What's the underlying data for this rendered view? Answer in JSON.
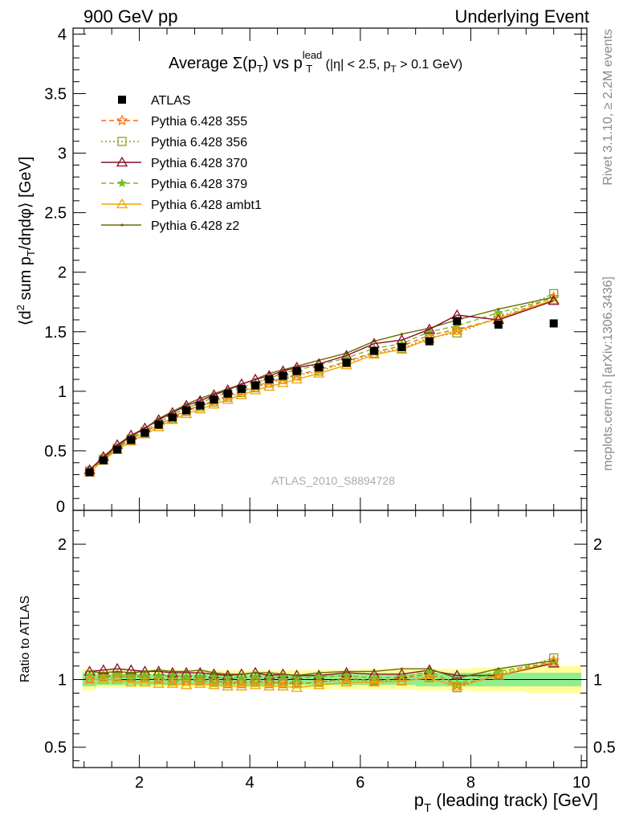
{
  "header": {
    "left": "900 GeV pp",
    "right": "Underlying Event"
  },
  "side_labels": {
    "rivet": "Rivet 3.1.10, ≥ 2.2M events",
    "mcplots": "mcplots.cern.ch [arXiv:1306.3436]"
  },
  "chart_data": [
    {
      "type": "scatter",
      "panel": "main",
      "title_parts": {
        "prefix": "Average Σ(p",
        "sub1": "T",
        "mid": ") vs p",
        "sup": "lead",
        "sub2": "T",
        "suffix": " (|η| < 2.5, p",
        "sub3": "T",
        "end": " > 0.1 GeV)"
      },
      "ylabel_parts": {
        "a": "⟨d",
        "sup": "2",
        "b": " sum p",
        "sub": "T",
        "c": "/dηdφ⟩ [GeV]"
      },
      "watermark": "ATLAS_2010_S8894728",
      "xlim": [
        0.8,
        10.1
      ],
      "ylim": [
        0,
        4.05
      ],
      "yticks": [
        "0.5",
        "1",
        "1.5",
        "2",
        "2.5",
        "3",
        "3.5",
        "4"
      ],
      "ytick_values": [
        0.5,
        1,
        1.5,
        2,
        2.5,
        3,
        3.5,
        4
      ],
      "y_zero_label": "0",
      "x": [
        1.1,
        1.35,
        1.6,
        1.85,
        2.1,
        2.35,
        2.6,
        2.85,
        3.1,
        3.35,
        3.6,
        3.85,
        4.1,
        4.35,
        4.6,
        4.85,
        5.25,
        5.75,
        6.25,
        6.75,
        7.25,
        7.75,
        8.5,
        9.5
      ],
      "series": [
        {
          "name": "ATLAS",
          "color": "#000000",
          "marker": "square-filled",
          "dash": "none",
          "values": [
            0.32,
            0.42,
            0.51,
            0.59,
            0.65,
            0.72,
            0.78,
            0.84,
            0.88,
            0.93,
            0.98,
            1.02,
            1.05,
            1.1,
            1.13,
            1.17,
            1.2,
            1.24,
            1.34,
            1.37,
            1.42,
            1.59,
            1.56,
            1.57
          ]
        },
        {
          "name": "Pythia 6.428 355",
          "color": "#ff6600",
          "marker": "star-open",
          "dash": "6,4",
          "values": [
            0.32,
            0.43,
            0.52,
            0.6,
            0.66,
            0.72,
            0.78,
            0.84,
            0.88,
            0.92,
            0.96,
            1.0,
            1.04,
            1.08,
            1.11,
            1.14,
            1.18,
            1.25,
            1.33,
            1.38,
            1.47,
            1.52,
            1.61,
            1.79
          ]
        },
        {
          "name": "Pythia 6.428 356",
          "color": "#8aa01e",
          "marker": "square-open",
          "dash": "2,3",
          "values": [
            0.33,
            0.43,
            0.52,
            0.6,
            0.66,
            0.72,
            0.77,
            0.83,
            0.87,
            0.91,
            0.95,
            0.99,
            1.03,
            1.07,
            1.1,
            1.13,
            1.17,
            1.24,
            1.32,
            1.36,
            1.45,
            1.49,
            1.62,
            1.82
          ]
        },
        {
          "name": "Pythia 6.428 370",
          "color": "#8b0d2a",
          "marker": "triangle-open",
          "dash": "none",
          "values": [
            0.34,
            0.45,
            0.55,
            0.63,
            0.69,
            0.76,
            0.82,
            0.88,
            0.92,
            0.97,
            1.01,
            1.06,
            1.1,
            1.13,
            1.17,
            1.2,
            1.23,
            1.3,
            1.4,
            1.43,
            1.52,
            1.64,
            1.6,
            1.76
          ]
        },
        {
          "name": "Pythia 6.428 379",
          "color": "#77bb22",
          "marker": "star-small",
          "dash": "6,4",
          "values": [
            0.33,
            0.43,
            0.53,
            0.61,
            0.67,
            0.74,
            0.8,
            0.86,
            0.9,
            0.95,
            0.99,
            1.03,
            1.07,
            1.11,
            1.15,
            1.18,
            1.22,
            1.28,
            1.36,
            1.4,
            1.5,
            1.55,
            1.66,
            1.78
          ]
        },
        {
          "name": "Pythia 6.428 ambt1",
          "color": "#f4a000",
          "marker": "triangle-open",
          "dash": "none",
          "values": [
            0.32,
            0.42,
            0.51,
            0.58,
            0.64,
            0.7,
            0.76,
            0.81,
            0.85,
            0.89,
            0.93,
            0.97,
            1.01,
            1.04,
            1.07,
            1.1,
            1.15,
            1.22,
            1.31,
            1.35,
            1.44,
            1.51,
            1.61,
            1.77
          ]
        },
        {
          "name": "Pythia 6.428 z2",
          "color": "#6b6b00",
          "marker": "dot",
          "dash": "none",
          "values": [
            0.34,
            0.44,
            0.54,
            0.62,
            0.69,
            0.77,
            0.83,
            0.89,
            0.94,
            0.98,
            1.02,
            1.06,
            1.1,
            1.15,
            1.18,
            1.21,
            1.26,
            1.32,
            1.42,
            1.48,
            1.53,
            1.6,
            1.69,
            1.79
          ]
        }
      ]
    },
    {
      "type": "scatter",
      "panel": "ratio",
      "ylabel": "Ratio to ATLAS",
      "xlabel_parts": {
        "a": "p",
        "sub": "T",
        "b": " (leading track) [GeV]"
      },
      "xlim": [
        0.8,
        10.1
      ],
      "ylim": [
        0.35,
        2.25
      ],
      "xticks": [
        "2",
        "4",
        "6",
        "8",
        "10"
      ],
      "xtick_values": [
        2,
        4,
        6,
        8,
        10
      ],
      "yticks": [
        "0.5",
        "1",
        "2"
      ],
      "ytick_values": [
        0.5,
        1,
        2
      ],
      "bands": {
        "edges": [
          0.97,
          1.22,
          1.47,
          1.72,
          1.97,
          2.22,
          2.47,
          2.72,
          2.97,
          3.22,
          3.47,
          3.72,
          3.97,
          4.22,
          4.47,
          4.72,
          4.97,
          5.5,
          6.0,
          6.5,
          7.0,
          7.5,
          8.0,
          9.0,
          10.0
        ],
        "inner": [
          [
            0.95,
            1.05
          ],
          [
            0.96,
            1.04
          ],
          [
            0.96,
            1.04
          ],
          [
            0.96,
            1.04
          ],
          [
            0.96,
            1.04
          ],
          [
            0.96,
            1.04
          ],
          [
            0.96,
            1.04
          ],
          [
            0.96,
            1.04
          ],
          [
            0.96,
            1.04
          ],
          [
            0.96,
            1.04
          ],
          [
            0.96,
            1.04
          ],
          [
            0.96,
            1.04
          ],
          [
            0.96,
            1.04
          ],
          [
            0.96,
            1.04
          ],
          [
            0.96,
            1.04
          ],
          [
            0.96,
            1.04
          ],
          [
            0.96,
            1.04
          ],
          [
            0.96,
            1.04
          ],
          [
            0.96,
            1.04
          ],
          [
            0.96,
            1.04
          ],
          [
            0.95,
            1.05
          ],
          [
            0.95,
            1.05
          ],
          [
            0.95,
            1.05
          ],
          [
            0.95,
            1.05
          ]
        ],
        "outer": [
          [
            0.92,
            1.08
          ],
          [
            0.94,
            1.07
          ],
          [
            0.94,
            1.07
          ],
          [
            0.94,
            1.07
          ],
          [
            0.94,
            1.07
          ],
          [
            0.94,
            1.07
          ],
          [
            0.94,
            1.07
          ],
          [
            0.94,
            1.07
          ],
          [
            0.94,
            1.07
          ],
          [
            0.94,
            1.07
          ],
          [
            0.94,
            1.07
          ],
          [
            0.94,
            1.07
          ],
          [
            0.94,
            1.07
          ],
          [
            0.94,
            1.07
          ],
          [
            0.94,
            1.07
          ],
          [
            0.93,
            1.07
          ],
          [
            0.93,
            1.07
          ],
          [
            0.93,
            1.07
          ],
          [
            0.93,
            1.08
          ],
          [
            0.93,
            1.08
          ],
          [
            0.92,
            1.08
          ],
          [
            0.92,
            1.08
          ],
          [
            0.91,
            1.09
          ],
          [
            0.9,
            1.1
          ]
        ],
        "inner_color": "#90ee90",
        "outer_color": "#ffff99"
      },
      "series": [
        {
          "name": "Pythia 6.428 355",
          "values": [
            1.0,
            1.02,
            1.02,
            1.02,
            1.02,
            1.0,
            1.0,
            1.0,
            1.0,
            0.99,
            0.98,
            0.98,
            0.99,
            0.98,
            0.98,
            0.97,
            0.98,
            1.01,
            0.99,
            1.01,
            1.04,
            0.96,
            1.03,
            1.14
          ]
        },
        {
          "name": "Pythia 6.428 356",
          "values": [
            1.03,
            1.02,
            1.02,
            1.02,
            1.02,
            1.0,
            0.99,
            0.99,
            0.99,
            0.98,
            0.97,
            0.97,
            0.98,
            0.97,
            0.97,
            0.97,
            0.98,
            1.0,
            0.99,
            0.99,
            1.02,
            0.94,
            1.04,
            1.16
          ]
        },
        {
          "name": "Pythia 6.428 370",
          "values": [
            1.06,
            1.07,
            1.08,
            1.07,
            1.06,
            1.06,
            1.05,
            1.05,
            1.05,
            1.04,
            1.03,
            1.04,
            1.05,
            1.03,
            1.04,
            1.03,
            1.03,
            1.05,
            1.04,
            1.04,
            1.07,
            1.03,
            1.03,
            1.12
          ]
        },
        {
          "name": "Pythia 6.428 379",
          "values": [
            1.03,
            1.02,
            1.04,
            1.03,
            1.03,
            1.03,
            1.03,
            1.02,
            1.02,
            1.02,
            1.01,
            1.01,
            1.02,
            1.01,
            1.02,
            1.01,
            1.02,
            1.03,
            1.01,
            1.02,
            1.06,
            0.97,
            1.06,
            1.13
          ]
        },
        {
          "name": "Pythia 6.428 ambt1",
          "values": [
            1.0,
            1.0,
            1.0,
            0.98,
            0.98,
            0.97,
            0.97,
            0.96,
            0.97,
            0.96,
            0.95,
            0.95,
            0.96,
            0.95,
            0.95,
            0.94,
            0.96,
            0.98,
            0.98,
            0.99,
            1.01,
            0.95,
            1.03,
            1.13
          ]
        },
        {
          "name": "Pythia 6.428 z2",
          "values": [
            1.06,
            1.05,
            1.06,
            1.05,
            1.06,
            1.07,
            1.06,
            1.06,
            1.07,
            1.05,
            1.04,
            1.04,
            1.05,
            1.05,
            1.04,
            1.03,
            1.05,
            1.06,
            1.06,
            1.08,
            1.08,
            1.01,
            1.08,
            1.14
          ]
        }
      ]
    }
  ]
}
